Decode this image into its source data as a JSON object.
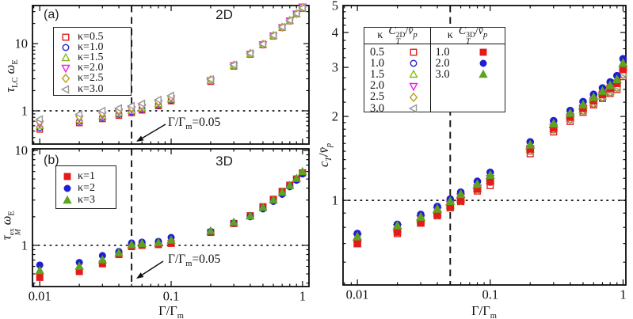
{
  "panels": {
    "a": {
      "tag": "(a)",
      "title": "2D",
      "ylabel": {
        "tau": "τ",
        "tau_sub": "LC",
        "omega": "ω",
        "omega_sub": "E"
      }
    },
    "b": {
      "tag": "(b)",
      "title": "3D",
      "ylabel": {
        "tau": "τ",
        "tau_sup": "ex",
        "tau_sub": "M",
        "omega": "ω",
        "omega_sub": "E"
      }
    },
    "right": {
      "ylabel": {
        "c": "c",
        "c_sub": "T",
        "slash": "/",
        "v": "v̄",
        "v_sub": "p"
      }
    }
  },
  "xlabel": {
    "pre": "Γ/Γ",
    "sub": "m"
  },
  "annotation": {
    "pre": "Γ/Γ",
    "sub": "m",
    "post": "=0.05"
  },
  "right_legend": {
    "kappa_header": "κ",
    "q2d": {
      "base": "C",
      "sup": "2D",
      "sub": "T",
      "slash": "/",
      "v": "v̄",
      "vsub": "p"
    },
    "q3d": {
      "base": "C",
      "sup": "3D",
      "sub": "T",
      "slash": "/",
      "v": "v̄",
      "vsub": "p"
    }
  },
  "colors": {
    "red_open": "#dd2020",
    "blue_open": "#2828cc",
    "green_open": "#84bb22",
    "magenta_open": "#e820e8",
    "dark_yellow_open": "#b5a51e",
    "gray_open": "#979797",
    "red_filled": "#e31b1b",
    "blue_filled": "#1e1ed2",
    "green_filled": "#5ea321",
    "line": "#111111"
  },
  "chart_data": [
    {
      "id": "a",
      "type": "scatter",
      "xscale": "log",
      "yscale": "log",
      "title": "2D",
      "px": {
        "l": 41,
        "t": 7,
        "r": 390,
        "b": 182
      },
      "marker_size": 7,
      "x": {
        "min": 0.0088,
        "max": 1.12,
        "ticks": [
          0.01,
          0.1,
          1
        ],
        "tick_labels": [
          "0.01",
          "0.1",
          "1"
        ],
        "show_tick_labels": false,
        "minor": "log"
      },
      "y": {
        "min": 0.32,
        "max": 36.9,
        "ticks": [
          1,
          10
        ],
        "tick_labels": [
          "1",
          "10"
        ],
        "minor": "log"
      },
      "vline_dashed_x": 0.05,
      "hline_dotted_y": 1,
      "arrow": {
        "tail": [
          209,
          157
        ],
        "tip": [
          172,
          179
        ]
      },
      "x_values": [
        0.01,
        0.02,
        0.03,
        0.04,
        0.05,
        0.06,
        0.08,
        0.1,
        0.2,
        0.3,
        0.4,
        0.5,
        0.6,
        0.7,
        0.8,
        0.9,
        1.0
      ],
      "series": [
        {
          "name": "κ=0.5",
          "kappa": "0.5",
          "marker": "square",
          "fill": "open",
          "color": "#dd2020",
          "values": [
            0.53,
            0.66,
            0.76,
            0.85,
            0.93,
            1.02,
            1.18,
            1.4,
            2.72,
            4.6,
            6.9,
            9.55,
            12.9,
            17.3,
            21.7,
            27.6,
            33.2
          ]
        },
        {
          "name": "κ=1.0",
          "kappa": "1.0",
          "marker": "circle",
          "fill": "open",
          "color": "#2828cc",
          "values": [
            0.56,
            0.69,
            0.79,
            0.88,
            0.96,
            1.05,
            1.21,
            1.43,
            2.76,
            4.65,
            6.95,
            9.6,
            13.0,
            17.4,
            21.8,
            27.7,
            33.4
          ]
        },
        {
          "name": "κ=1.5",
          "kappa": "1.5",
          "marker": "triangle-up",
          "fill": "open",
          "color": "#84bb22",
          "values": [
            0.6,
            0.73,
            0.83,
            0.92,
            1.0,
            1.09,
            1.26,
            1.48,
            2.8,
            4.7,
            7.0,
            9.7,
            13.1,
            17.45,
            21.9,
            27.8,
            33.6
          ]
        },
        {
          "name": "κ=2.0",
          "kappa": "2.0",
          "marker": "triangle-down",
          "fill": "open",
          "color": "#e820e8",
          "values": [
            0.64,
            0.77,
            0.87,
            0.97,
            1.05,
            1.14,
            1.31,
            1.53,
            2.85,
            4.75,
            7.05,
            9.75,
            13.15,
            17.5,
            22.0,
            27.9,
            35.5
          ]
        },
        {
          "name": "κ=2.5",
          "kappa": "2.5",
          "marker": "diamond",
          "fill": "open",
          "color": "#b5a51e",
          "values": [
            0.69,
            0.82,
            0.93,
            1.02,
            1.11,
            1.2,
            1.38,
            1.6,
            2.9,
            4.8,
            7.15,
            9.85,
            13.2,
            17.6,
            22.1,
            28.0,
            34.5
          ]
        },
        {
          "name": "κ=3.0",
          "kappa": "3.0",
          "marker": "triangle-left",
          "fill": "open",
          "color": "#979797",
          "values": [
            0.75,
            0.89,
            1.0,
            1.09,
            1.18,
            1.28,
            1.46,
            1.68,
            2.95,
            4.85,
            7.2,
            9.9,
            13.3,
            17.7,
            22.2,
            28.1,
            34.0
          ]
        }
      ]
    },
    {
      "id": "b",
      "type": "scatter",
      "xscale": "log",
      "yscale": "log",
      "title": "3D",
      "px": {
        "l": 41,
        "t": 188,
        "r": 390,
        "b": 362
      },
      "marker_size": 7,
      "x": {
        "min": 0.0088,
        "max": 1.12,
        "ticks": [
          0.01,
          0.1,
          1
        ],
        "tick_labels": [
          "0.01",
          "0.1",
          "1"
        ],
        "show_tick_labels": true,
        "minor": "log"
      },
      "y": {
        "min": 0.368,
        "max": 10.4,
        "ticks": [
          1,
          10
        ],
        "tick_labels": [
          "1",
          "10"
        ],
        "minor": "log"
      },
      "vline_dashed_x": 0.05,
      "hline_dotted_y": 1,
      "arrow": {
        "tail": [
          206,
          330
        ],
        "tip": [
          172,
          352
        ]
      },
      "x_values": [
        0.01,
        0.02,
        0.03,
        0.04,
        0.05,
        0.06,
        0.08,
        0.1,
        0.2,
        0.3,
        0.4,
        0.5,
        0.6,
        0.7,
        0.8,
        0.9,
        1.0
      ],
      "series": [
        {
          "name": "κ=1",
          "kappa": "1",
          "marker": "square",
          "fill": "filled",
          "color": "#e31b1b",
          "values": [
            0.46,
            0.53,
            0.64,
            0.8,
            0.97,
            1.0,
            1.02,
            1.05,
            1.37,
            1.7,
            2.05,
            2.55,
            3.05,
            3.7,
            4.3,
            5.0,
            5.8
          ]
        },
        {
          "name": "κ=2",
          "kappa": "2",
          "marker": "circle",
          "fill": "filled",
          "color": "#1e1ed2",
          "values": [
            0.62,
            0.66,
            0.78,
            0.86,
            1.06,
            1.08,
            1.1,
            1.21,
            1.4,
            1.72,
            2.0,
            2.42,
            2.9,
            3.45,
            4.15,
            4.85,
            5.65
          ]
        },
        {
          "name": "κ=3",
          "kappa": "3",
          "marker": "triangle-up",
          "fill": "filled",
          "color": "#5ea321",
          "values": [
            0.54,
            0.6,
            0.7,
            0.83,
            1.01,
            1.04,
            1.06,
            1.13,
            1.41,
            1.74,
            2.03,
            2.5,
            3.0,
            3.6,
            4.25,
            5.05,
            5.95
          ]
        }
      ]
    },
    {
      "id": "right",
      "type": "scatter",
      "xscale": "log",
      "yscale": "log",
      "title": "",
      "px": {
        "l": 433,
        "t": 7,
        "r": 790,
        "b": 360
      },
      "marker_size": 7.6,
      "x": {
        "min": 0.0078,
        "max": 1.05,
        "ticks": [
          0.01,
          0.1,
          1
        ],
        "tick_labels": [
          "0.01",
          "0.1",
          "1"
        ],
        "show_tick_labels": true,
        "minor": "log"
      },
      "y": {
        "min": 0.497,
        "max": 5.0,
        "ticks": [
          1,
          2,
          3,
          4,
          5
        ],
        "tick_labels": [
          "1",
          "2",
          "3",
          "4",
          "5"
        ],
        "minor": "mixed"
      },
      "vline_dashed_x": 0.05,
      "hline_dotted_y": 1,
      "x_values": [
        0.01,
        0.02,
        0.03,
        0.04,
        0.05,
        0.06,
        0.08,
        0.1,
        0.2,
        0.3,
        0.4,
        0.5,
        0.6,
        0.7,
        0.8,
        0.9,
        1.0
      ],
      "series": [
        {
          "name": "2D κ=0.5",
          "kappa": "0.5",
          "marker": "square",
          "fill": "open",
          "color": "#dd2020",
          "values": [
            0.7,
            0.76,
            0.83,
            0.88,
            0.94,
            0.99,
            1.08,
            1.13,
            1.47,
            1.76,
            1.92,
            2.07,
            2.2,
            2.32,
            2.42,
            2.5,
            2.78
          ]
        },
        {
          "name": "2D κ=1.0",
          "kappa": "1.0",
          "marker": "circle",
          "fill": "open",
          "color": "#2828cc",
          "values": [
            0.72,
            0.78,
            0.84,
            0.89,
            0.95,
            1.0,
            1.09,
            1.16,
            1.5,
            1.79,
            1.95,
            2.09,
            2.22,
            2.34,
            2.44,
            2.53,
            2.82
          ]
        },
        {
          "name": "2D κ=1.5",
          "kappa": "1.5",
          "marker": "triangle-up",
          "fill": "open",
          "color": "#84bb22",
          "values": [
            0.73,
            0.79,
            0.85,
            0.9,
            0.96,
            1.01,
            1.1,
            1.18,
            1.52,
            1.81,
            1.97,
            2.11,
            2.24,
            2.36,
            2.46,
            2.55,
            2.85
          ]
        },
        {
          "name": "2D κ=2.0",
          "kappa": "2.0",
          "marker": "triangle-down",
          "fill": "open",
          "color": "#e820e8",
          "values": [
            0.74,
            0.8,
            0.86,
            0.92,
            0.97,
            1.03,
            1.11,
            1.2,
            1.53,
            1.83,
            1.99,
            2.13,
            2.26,
            2.38,
            2.48,
            2.57,
            2.87
          ]
        },
        {
          "name": "2D κ=2.5",
          "kappa": "2.5",
          "marker": "diamond",
          "fill": "open",
          "color": "#b5a51e",
          "values": [
            0.71,
            0.77,
            0.84,
            0.89,
            0.95,
            1.0,
            1.09,
            1.17,
            1.51,
            1.8,
            1.96,
            2.1,
            2.23,
            2.35,
            2.45,
            2.54,
            2.83
          ]
        },
        {
          "name": "2D κ=3.0",
          "kappa": "3.0",
          "marker": "triangle-left",
          "fill": "open",
          "color": "#979797",
          "values": [
            0.72,
            0.78,
            0.85,
            0.9,
            0.96,
            1.02,
            1.1,
            1.18,
            1.52,
            1.82,
            1.97,
            2.12,
            2.25,
            2.37,
            2.47,
            2.56,
            2.86
          ]
        },
        {
          "name": "3D κ=1.0",
          "kappa": "1.0",
          "marker": "square",
          "fill": "filled",
          "color": "#e31b1b",
          "values": [
            0.7,
            0.77,
            0.83,
            0.89,
            0.95,
            1.0,
            1.1,
            1.17,
            1.53,
            1.82,
            1.99,
            2.14,
            2.28,
            2.4,
            2.52,
            2.63,
            2.95
          ]
        },
        {
          "name": "3D κ=2.0",
          "kappa": "2.0",
          "marker": "circle",
          "fill": "filled",
          "color": "#1e1ed2",
          "values": [
            0.76,
            0.82,
            0.89,
            0.95,
            1.01,
            1.07,
            1.17,
            1.26,
            1.62,
            1.93,
            2.1,
            2.26,
            2.4,
            2.53,
            2.66,
            2.8,
            3.22
          ]
        },
        {
          "name": "3D κ=3.0",
          "kappa": "3.0",
          "marker": "triangle-up",
          "fill": "filled",
          "color": "#5ea321",
          "values": [
            0.74,
            0.81,
            0.87,
            0.93,
            0.99,
            1.05,
            1.14,
            1.23,
            1.58,
            1.88,
            2.05,
            2.2,
            2.34,
            2.46,
            2.58,
            2.71,
            3.1
          ]
        }
      ]
    }
  ]
}
